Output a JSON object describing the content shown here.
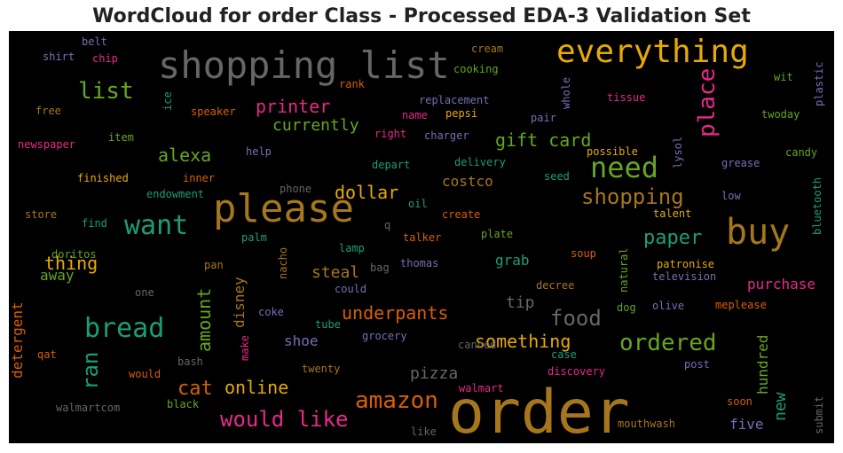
{
  "chart_data": {
    "type": "wordcloud",
    "title": "WordCloud for order Class - Processed EDA-3 Validation Set",
    "background": "#000000",
    "palette": [
      "#1b9e77",
      "#d95f02",
      "#7570b3",
      "#e7298a",
      "#66a61e",
      "#e6ab02",
      "#a6761d",
      "#666666"
    ],
    "words": [
      {
        "text": "order",
        "color": "#a6761d"
      },
      {
        "text": "please",
        "color": "#a6761d"
      },
      {
        "text": "shopping list",
        "color": "#666666"
      },
      {
        "text": "everything",
        "color": "#e6ab02"
      },
      {
        "text": "buy",
        "color": "#a6761d"
      },
      {
        "text": "need",
        "color": "#66a61e"
      },
      {
        "text": "want",
        "color": "#1b9e77"
      },
      {
        "text": "bread",
        "color": "#1b9e77"
      },
      {
        "text": "amazon",
        "color": "#d95f02"
      },
      {
        "text": "ordered",
        "color": "#66a61e"
      },
      {
        "text": "would like",
        "color": "#e7298a"
      },
      {
        "text": "shopping",
        "color": "#a6761d"
      },
      {
        "text": "food",
        "color": "#666666"
      },
      {
        "text": "list",
        "color": "#66a61e"
      },
      {
        "text": "place",
        "color": "#e7298a"
      },
      {
        "text": "paper",
        "color": "#1b9e77"
      },
      {
        "text": "ran",
        "color": "#1b9e77"
      },
      {
        "text": "cat",
        "color": "#d95f02"
      },
      {
        "text": "something",
        "color": "#e6ab02"
      },
      {
        "text": "underpants",
        "color": "#d95f02"
      },
      {
        "text": "gift card",
        "color": "#66a61e"
      },
      {
        "text": "printer",
        "color": "#e7298a"
      },
      {
        "text": "online",
        "color": "#e6ab02"
      },
      {
        "text": "amount",
        "color": "#66a61e"
      },
      {
        "text": "alexa",
        "color": "#66a61e"
      },
      {
        "text": "thing",
        "color": "#e6ab02"
      },
      {
        "text": "dollar",
        "color": "#e6ab02"
      },
      {
        "text": "currently",
        "color": "#66a61e"
      },
      {
        "text": "new",
        "color": "#1b9e77"
      },
      {
        "text": "purchase",
        "color": "#e7298a"
      },
      {
        "text": "pizza",
        "color": "#666666"
      },
      {
        "text": "hundred",
        "color": "#66a61e"
      },
      {
        "text": "tip",
        "color": "#666666"
      },
      {
        "text": "costco",
        "color": "#a6761d"
      },
      {
        "text": "steal",
        "color": "#a6761d"
      },
      {
        "text": "shoe",
        "color": "#7570b3"
      },
      {
        "text": "disney",
        "color": "#a6761d"
      },
      {
        "text": "grab",
        "color": "#1b9e77"
      },
      {
        "text": "five",
        "color": "#7570b3"
      },
      {
        "text": "detergent",
        "color": "#d95f02"
      },
      {
        "text": "away",
        "color": "#66a61e"
      },
      {
        "text": "cream",
        "color": "#a6761d"
      },
      {
        "text": "cooking",
        "color": "#66a61e"
      },
      {
        "text": "replacement",
        "color": "#7570b3"
      },
      {
        "text": "tissue",
        "color": "#e7298a"
      },
      {
        "text": "wit",
        "color": "#66a61e"
      },
      {
        "text": "plastic",
        "color": "#7570b3"
      },
      {
        "text": "rank",
        "color": "#d95f02"
      },
      {
        "text": "whole",
        "color": "#7570b3"
      },
      {
        "text": "belt",
        "color": "#7570b3"
      },
      {
        "text": "shirt",
        "color": "#7570b3"
      },
      {
        "text": "chip",
        "color": "#e7298a"
      },
      {
        "text": "free",
        "color": "#a6761d"
      },
      {
        "text": "ice",
        "color": "#1b9e77"
      },
      {
        "text": "speaker",
        "color": "#d95f02"
      },
      {
        "text": "name",
        "color": "#e7298a"
      },
      {
        "text": "pepsi",
        "color": "#e6ab02"
      },
      {
        "text": "pair",
        "color": "#7570b3"
      },
      {
        "text": "twoday",
        "color": "#66a61e"
      },
      {
        "text": "newspaper",
        "color": "#e7298a"
      },
      {
        "text": "item",
        "color": "#66a61e"
      },
      {
        "text": "right",
        "color": "#e7298a"
      },
      {
        "text": "charger",
        "color": "#7570b3"
      },
      {
        "text": "help",
        "color": "#7570b3"
      },
      {
        "text": "possible",
        "color": "#e6ab02"
      },
      {
        "text": "candy",
        "color": "#66a61e"
      },
      {
        "text": "finished",
        "color": "#e6ab02"
      },
      {
        "text": "inner",
        "color": "#d95f02"
      },
      {
        "text": "depart",
        "color": "#1b9e77"
      },
      {
        "text": "delivery",
        "color": "#1b9e77"
      },
      {
        "text": "lysol",
        "color": "#7570b3"
      },
      {
        "text": "grease",
        "color": "#7570b3"
      },
      {
        "text": "seed",
        "color": "#1b9e77"
      },
      {
        "text": "endowment",
        "color": "#1b9e77"
      },
      {
        "text": "phone",
        "color": "#666666"
      },
      {
        "text": "bluetooth",
        "color": "#1b9e77"
      },
      {
        "text": "low",
        "color": "#7570b3"
      },
      {
        "text": "store",
        "color": "#a6761d"
      },
      {
        "text": "oil",
        "color": "#1b9e77"
      },
      {
        "text": "create",
        "color": "#d95f02"
      },
      {
        "text": "talent",
        "color": "#e6ab02"
      },
      {
        "text": "find",
        "color": "#1b9e77"
      },
      {
        "text": "q",
        "color": "#666666"
      },
      {
        "text": "palm",
        "color": "#1b9e77"
      },
      {
        "text": "talker",
        "color": "#d95f02"
      },
      {
        "text": "plate",
        "color": "#66a61e"
      },
      {
        "text": "lamp",
        "color": "#1b9e77"
      },
      {
        "text": "doritos",
        "color": "#66a61e"
      },
      {
        "text": "soup",
        "color": "#d95f02"
      },
      {
        "text": "natural",
        "color": "#66a61e"
      },
      {
        "text": "pan",
        "color": "#a6761d"
      },
      {
        "text": "nacho",
        "color": "#a6761d"
      },
      {
        "text": "bag",
        "color": "#666666"
      },
      {
        "text": "thomas",
        "color": "#7570b3"
      },
      {
        "text": "patronise",
        "color": "#e6ab02"
      },
      {
        "text": "television",
        "color": "#7570b3"
      },
      {
        "text": "one",
        "color": "#666666"
      },
      {
        "text": "could",
        "color": "#7570b3"
      },
      {
        "text": "decree",
        "color": "#a6761d"
      },
      {
        "text": "coke",
        "color": "#7570b3"
      },
      {
        "text": "dog",
        "color": "#66a61e"
      },
      {
        "text": "olive",
        "color": "#7570b3"
      },
      {
        "text": "meplease",
        "color": "#d95f02"
      },
      {
        "text": "make",
        "color": "#e7298a"
      },
      {
        "text": "tube",
        "color": "#1b9e77"
      },
      {
        "text": "grocery",
        "color": "#7570b3"
      },
      {
        "text": "qat",
        "color": "#d95f02"
      },
      {
        "text": "bash",
        "color": "#666666"
      },
      {
        "text": "canned",
        "color": "#666666"
      },
      {
        "text": "case",
        "color": "#1b9e77"
      },
      {
        "text": "would",
        "color": "#d95f02"
      },
      {
        "text": "twenty",
        "color": "#a6761d"
      },
      {
        "text": "discovery",
        "color": "#e7298a"
      },
      {
        "text": "post",
        "color": "#7570b3"
      },
      {
        "text": "walmart",
        "color": "#e7298a"
      },
      {
        "text": "soon",
        "color": "#d95f02"
      },
      {
        "text": "walmartcom",
        "color": "#666666"
      },
      {
        "text": "black",
        "color": "#66a61e"
      },
      {
        "text": "submit",
        "color": "#666666"
      },
      {
        "text": "mouthwash",
        "color": "#a6761d"
      },
      {
        "text": "like",
        "color": "#666666"
      }
    ]
  }
}
